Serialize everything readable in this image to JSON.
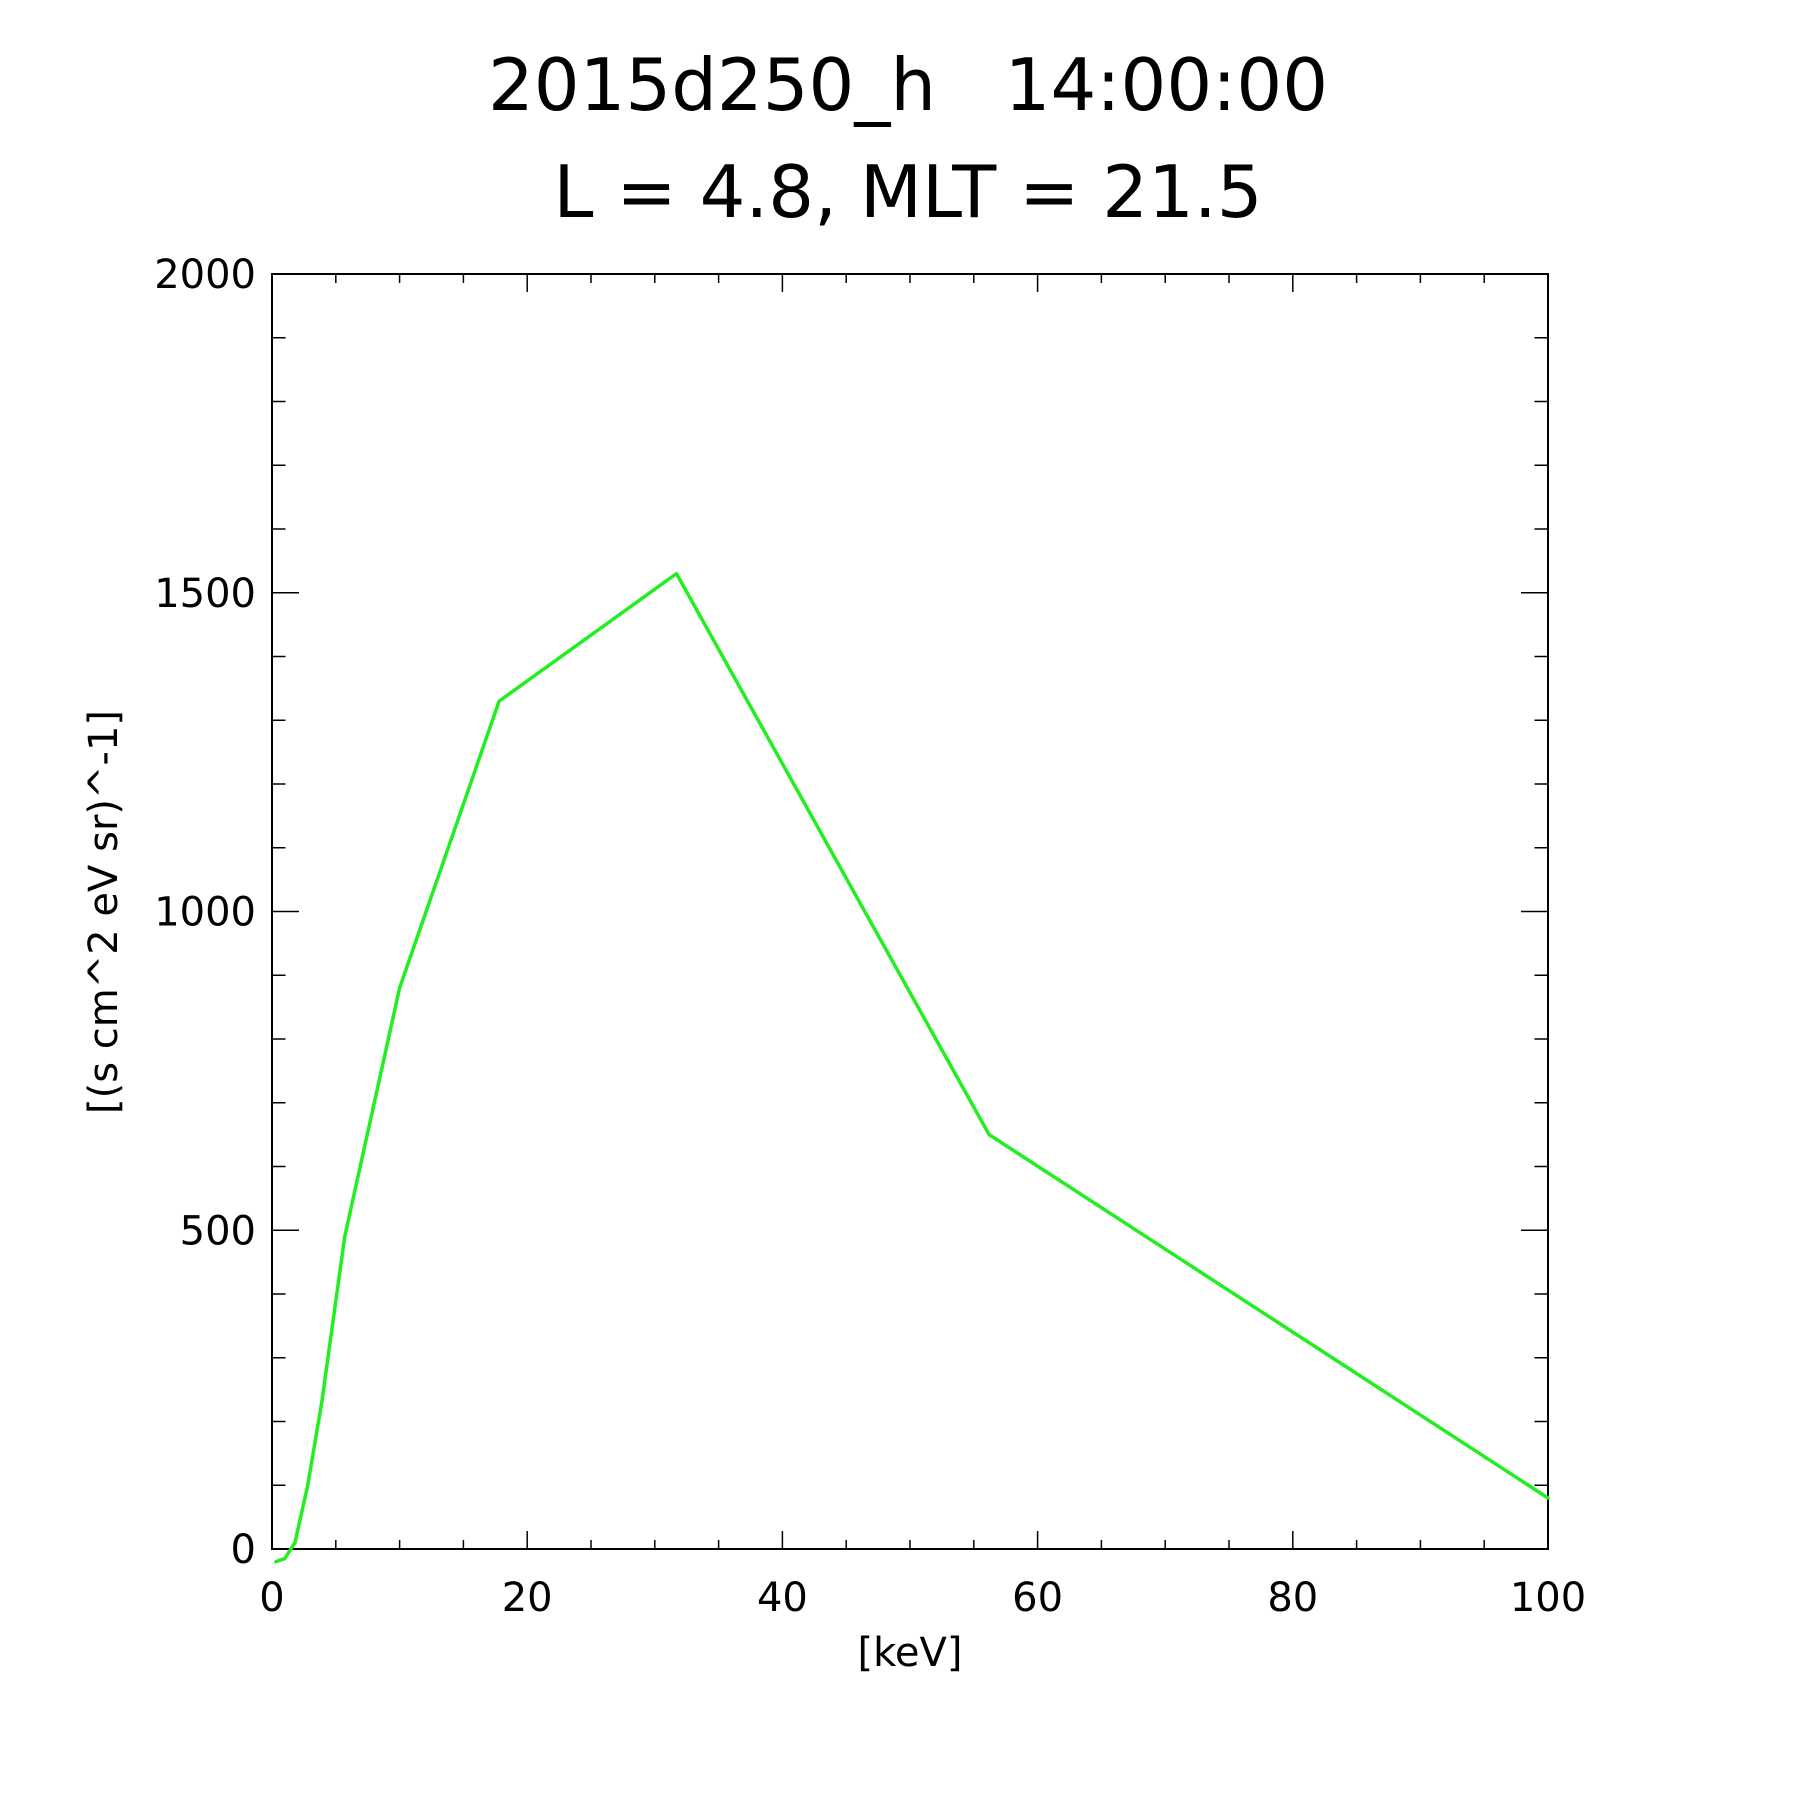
{
  "chart_data": {
    "type": "line",
    "title": "2015d250_h   14:00:00",
    "subtitle": "L = 4.8, MLT = 21.5",
    "xlabel": "[keV]",
    "ylabel": "[(s cm^2 eV sr)^-1]",
    "xlim": [
      0,
      100
    ],
    "ylim": [
      0,
      2000
    ],
    "grid": false,
    "x_ticks": [
      0,
      20,
      40,
      60,
      80,
      100
    ],
    "y_ticks": [
      0,
      500,
      1000,
      1500,
      2000
    ],
    "x_tick_labels": [
      "0",
      "20",
      "40",
      "60",
      "80",
      "100"
    ],
    "y_tick_labels": [
      "0",
      "500",
      "1000",
      "1500",
      "2000"
    ],
    "series": [
      {
        "color": "#22ee22",
        "x": [
          0.3,
          1.0,
          1.8,
          2.8,
          3.9,
          5.7,
          10.0,
          17.8,
          31.7,
          56.2,
          100.0
        ],
        "y": [
          -20,
          -15,
          10,
          100,
          230,
          490,
          880,
          1330,
          1530,
          650,
          80
        ]
      }
    ]
  }
}
